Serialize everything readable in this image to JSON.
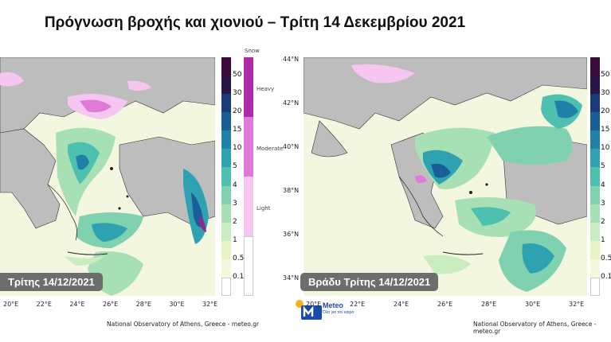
{
  "title": "Πρόγνωση βροχής και χιονιού – Τρίτη 14 Δεκεμβρίου 2021",
  "colorbar": {
    "levels": [
      "0.1",
      "0.5",
      "1",
      "2",
      "3",
      "4",
      "5",
      "10",
      "15",
      "20",
      "30",
      "50"
    ],
    "colors": [
      "#ffffff",
      "#f4f8dc",
      "#e8f4c4",
      "#c9ecc0",
      "#a6e0b4",
      "#7fd1b0",
      "#4ec0b0",
      "#2ea2b0",
      "#2080a8",
      "#1a5e98",
      "#1a3a7a",
      "#2a1548",
      "#3a0a3a"
    ]
  },
  "snowbar": {
    "title": "Snow",
    "levels": [
      "Heavy",
      "Moderate",
      "Light"
    ],
    "colors": [
      "#b02aa8",
      "#e07ad8",
      "#f6c6f0"
    ]
  },
  "left_panel": {
    "badge": "Τρίτης 14/12/2021",
    "lon_ticks": [
      "20°E",
      "22°E",
      "24°E",
      "26°E",
      "28°E",
      "30°E",
      "32°E"
    ]
  },
  "right_panel": {
    "badge": "Βράδυ Τρίτης 14/12/2021",
    "lon_ticks": [
      "20°E",
      "22°E",
      "24°E",
      "26°E",
      "28°E",
      "30°E",
      "32°E"
    ],
    "lat_ticks": [
      "44°N",
      "42°N",
      "40°N",
      "38°N",
      "36°N",
      "34°N"
    ]
  },
  "credit": "National Observatory of Athens, Greece - meteo.gr",
  "logo": {
    "name": "Meteo",
    "tagline": "Όλα για τον καιρό"
  }
}
